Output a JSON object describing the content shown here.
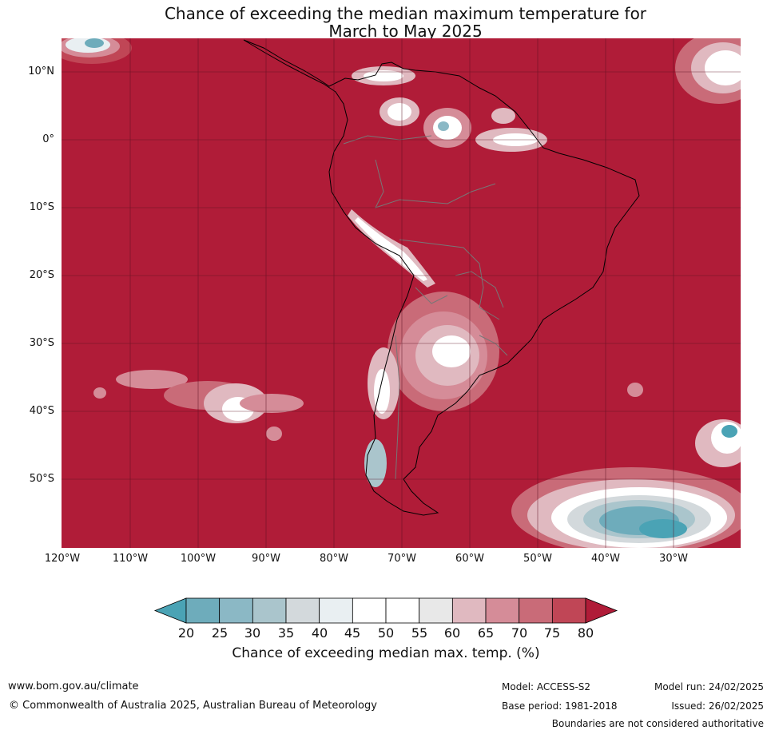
{
  "title_line1": "Chance of exceeding the median maximum temperature for",
  "title_line2": "March to May 2025",
  "lat_labels": [
    "10°N",
    "0°",
    "10°S",
    "20°S",
    "30°S",
    "40°S",
    "50°S"
  ],
  "lon_labels": [
    "120°W",
    "110°W",
    "100°W",
    "90°W",
    "80°W",
    "70°W",
    "60°W",
    "50°W",
    "40°W",
    "30°W"
  ],
  "colorbar": {
    "ticks": [
      "20",
      "25",
      "30",
      "35",
      "40",
      "45",
      "50",
      "55",
      "60",
      "65",
      "70",
      "75",
      "80"
    ],
    "colors": [
      "#4aa3b5",
      "#6eacbb",
      "#8bb8c5",
      "#aac5cc",
      "#d3d9dc",
      "#e9eff2",
      "#ffffff",
      "#ffffff",
      "#e8e8e8",
      "#e0b9c0",
      "#d58c98",
      "#c96b78",
      "#c04656",
      "#b01c38"
    ],
    "label": "Chance of exceeding median max. temp. (%)"
  },
  "map": {
    "ocean_color": "#b01c38",
    "coast_color": "#000000",
    "border_color": "#777777",
    "grid_color": "#5a1020"
  },
  "footer": {
    "url": "www.bom.gov.au/climate",
    "copyright": "© Commonwealth of Australia 2025, Australian Bureau of Meteorology",
    "model": "Model: ACCESS-S2",
    "base_period": "Base period: 1981-2018",
    "model_run": "Model run: 24/02/2025",
    "issued": "Issued: 26/02/2025",
    "disclaimer": "Boundaries are not considered authoritative"
  }
}
